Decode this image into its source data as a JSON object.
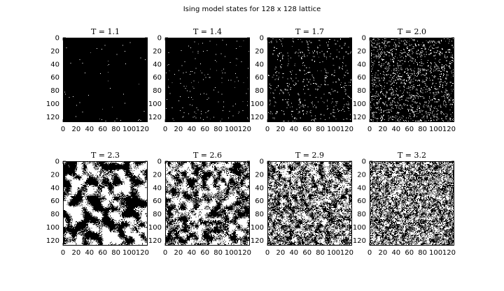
{
  "figure": {
    "title": "Ising model states for 128 x 128 lattice"
  },
  "chart_data": {
    "type": "heatmap",
    "colormap": {
      "spin_down": "#000000",
      "spin_up": "#ffffff"
    },
    "lattice_size": 128,
    "grid": false,
    "layout": {
      "rows": 2,
      "cols": 4
    },
    "xticks": [
      0,
      20,
      40,
      60,
      80,
      100,
      120
    ],
    "yticks": [
      0,
      20,
      40,
      60,
      80,
      100,
      120
    ],
    "xlim": [
      0,
      128
    ],
    "ylim": [
      128,
      0
    ],
    "panels": [
      {
        "title": "T = 1.1",
        "T": 1.1,
        "fraction_up": 0.003
      },
      {
        "title": "T = 1.4",
        "T": 1.4,
        "fraction_up": 0.01
      },
      {
        "title": "T = 1.7",
        "T": 1.7,
        "fraction_up": 0.04
      },
      {
        "title": "T = 2.0",
        "T": 2.0,
        "fraction_up": 0.12
      },
      {
        "title": "T = 2.3",
        "T": 2.3,
        "fraction_up": 0.5
      },
      {
        "title": "T = 2.6",
        "T": 2.6,
        "fraction_up": 0.5
      },
      {
        "title": "T = 2.9",
        "T": 2.9,
        "fraction_up": 0.5
      },
      {
        "title": "T = 3.2",
        "T": 3.2,
        "fraction_up": 0.5
      }
    ]
  }
}
